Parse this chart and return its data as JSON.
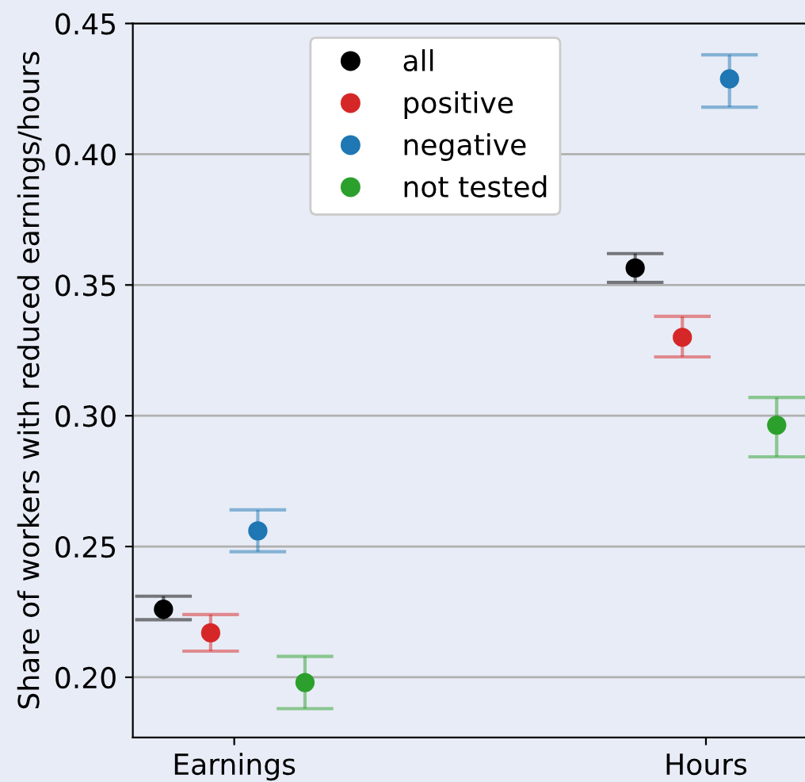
{
  "chart_data": {
    "type": "scatter",
    "ylabel": "Share of workers with reduced earnings/hours",
    "categories": [
      "Earnings",
      "Hours"
    ],
    "series": [
      {
        "name": "all",
        "color": "#000000",
        "values": [
          0.226,
          0.3565
        ],
        "errors": [
          [
            0.222,
            0.231
          ],
          [
            0.351,
            0.362
          ]
        ]
      },
      {
        "name": "positive",
        "color": "#d62728",
        "values": [
          0.217,
          0.33
        ],
        "errors": [
          [
            0.21,
            0.224
          ],
          [
            0.3225,
            0.338
          ]
        ]
      },
      {
        "name": "negative",
        "color": "#1f77b4",
        "values": [
          0.256,
          0.4288
        ],
        "errors": [
          [
            0.248,
            0.264
          ],
          [
            0.418,
            0.438
          ]
        ]
      },
      {
        "name": "not tested",
        "color": "#2ca02c",
        "values": [
          0.198,
          0.2964
        ],
        "errors": [
          [
            0.188,
            0.208
          ],
          [
            0.2843,
            0.307
          ]
        ]
      }
    ],
    "ylim": [
      0.177,
      0.45
    ],
    "yticks": [
      {
        "value": 0.2,
        "label": "0.20"
      },
      0.25,
      {
        "value": 0.3,
        "label": "0.30"
      },
      0.35,
      {
        "value": 0.4,
        "label": "0.40"
      },
      0.45
    ],
    "grid": "y",
    "legend": "top",
    "marker": "circle"
  }
}
